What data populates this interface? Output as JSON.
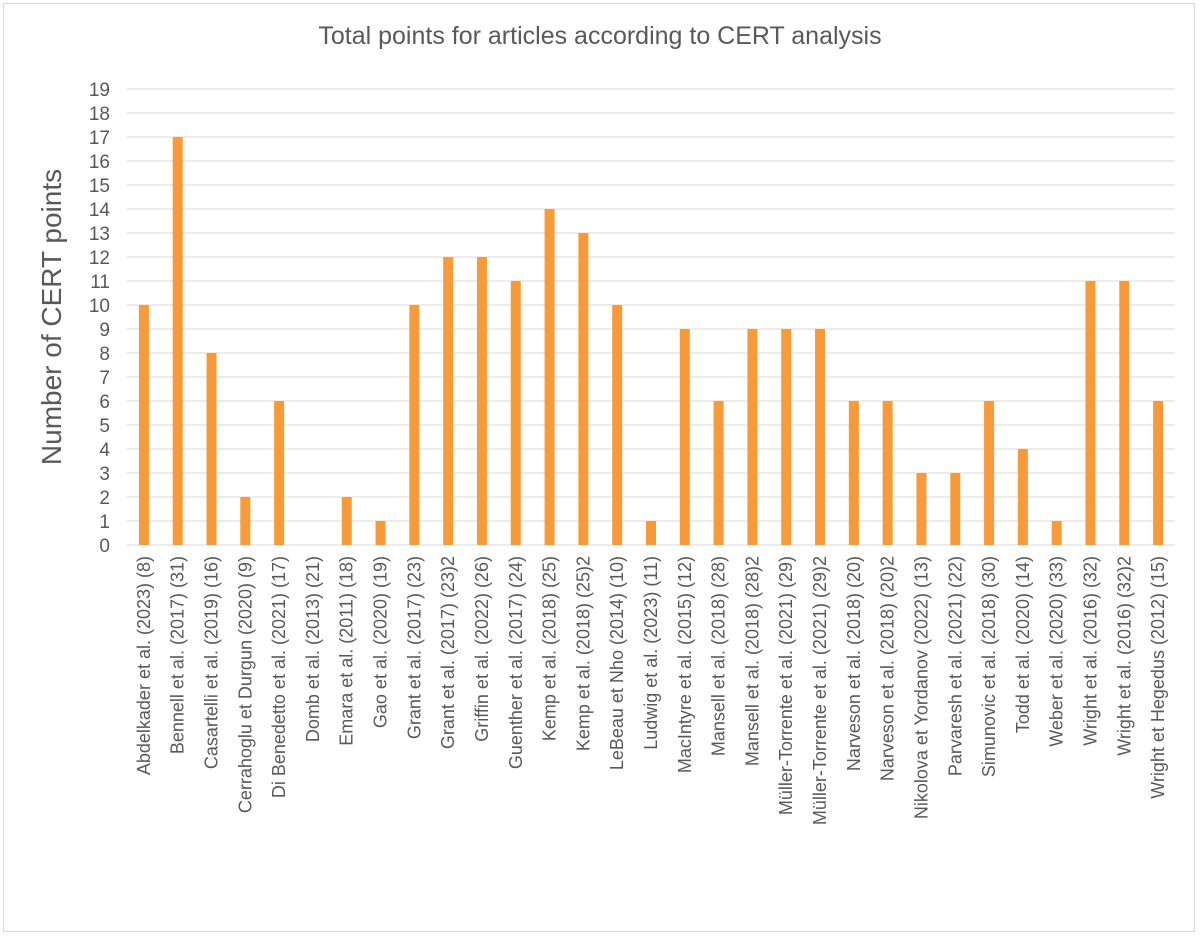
{
  "chart_data": {
    "type": "bar",
    "title": "Total points for articles according to CERT analysis",
    "xlabel": "",
    "ylabel": "Number of CERT points",
    "ylim": [
      0,
      19
    ],
    "yticks": [
      0,
      1,
      2,
      3,
      4,
      5,
      6,
      7,
      8,
      9,
      10,
      11,
      12,
      13,
      14,
      15,
      16,
      17,
      18,
      19
    ],
    "grid": true,
    "bar_color": "#f79a3b",
    "categories": [
      "Abdelkader et al. (2023) (8)",
      "Bennell et al. (2017) (31)",
      "Casartelli et al. (2019) (16)",
      "Cerrahoglu et Durgun (2020) (9)",
      "Di Benedetto et al. (2021) (17)",
      "Domb et al. (2013) (21)",
      "Emara et al. (2011) (18)",
      "Gao et al. (2020) (19)",
      "Grant et al. (2017) (23)",
      "Grant et al. (2017) (23)2",
      "Griffin et al. (2022) (26)",
      "Guenther et al. (2017) (24)",
      "Kemp et al. (2018) (25)",
      "Kemp et al. (2018) (25)2",
      "LeBeau et Nho (2014) (10)",
      "Ludwig et al. (2023) (11)",
      "MacIntyre et al. (2015) (12)",
      "Mansell et al. (2018) (28)",
      "Mansell et al. (2018) (28)2",
      "Müller-Torrente et al. (2021) (29)",
      "Müller-Torrente et al. (2021) (29)2",
      "Narveson et al. (2018) (20)",
      "Narveson et al. (2018) (20)2",
      "Nikolova et Yordanov (2022) (13)",
      "Parvaresh et al. (2021) (22)",
      "Simunovic et al. (2018) (30)",
      "Todd et al. (2020) (14)",
      "Weber et al. (2020) (33)",
      "Wright et al. (2016) (32)",
      "Wright et al. (2016) (32)2",
      "Wright et Hegedus (2012) (15)"
    ],
    "values": [
      10,
      17,
      8,
      2,
      6,
      0,
      2,
      1,
      10,
      12,
      12,
      11,
      14,
      13,
      10,
      1,
      9,
      6,
      9,
      9,
      9,
      6,
      6,
      3,
      3,
      6,
      4,
      1,
      11,
      11,
      6
    ]
  }
}
